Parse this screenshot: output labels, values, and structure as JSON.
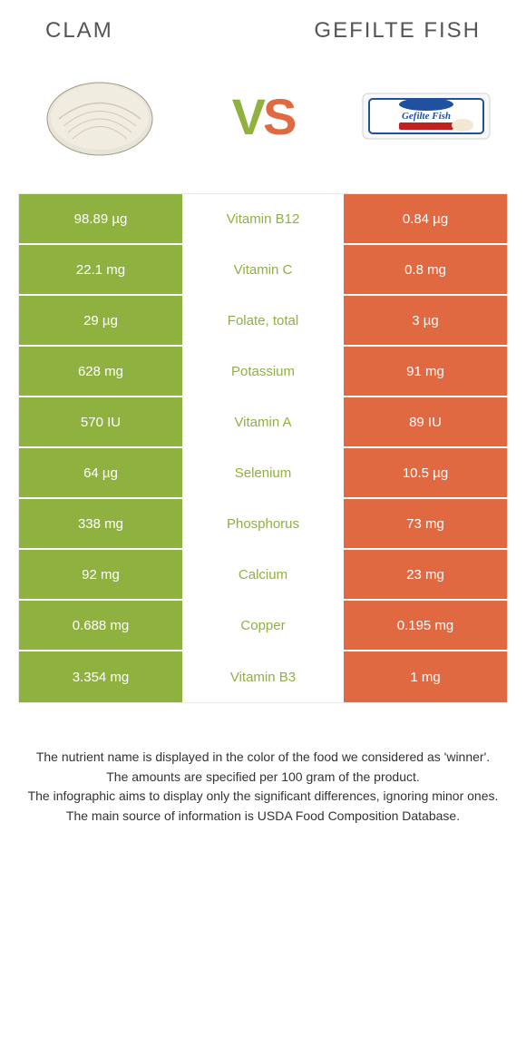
{
  "header": {
    "left": "Clam",
    "right": "Gefilte fish"
  },
  "vs": {
    "v": "V",
    "s": "S"
  },
  "colors": {
    "left_bg": "#8fb13f",
    "right_bg": "#e06941",
    "clam_winner": "#8fb13f",
    "gefilte_winner": "#e06941"
  },
  "table": {
    "rows": [
      {
        "left": "98.89 µg",
        "nutrient": "Vitamin B12",
        "right": "0.84 µg",
        "winner": "clam"
      },
      {
        "left": "22.1 mg",
        "nutrient": "Vitamin C",
        "right": "0.8 mg",
        "winner": "clam"
      },
      {
        "left": "29 µg",
        "nutrient": "Folate, total",
        "right": "3 µg",
        "winner": "clam"
      },
      {
        "left": "628 mg",
        "nutrient": "Potassium",
        "right": "91 mg",
        "winner": "clam"
      },
      {
        "left": "570 IU",
        "nutrient": "Vitamin A",
        "right": "89 IU",
        "winner": "clam"
      },
      {
        "left": "64 µg",
        "nutrient": "Selenium",
        "right": "10.5 µg",
        "winner": "clam"
      },
      {
        "left": "338 mg",
        "nutrient": "Phosphorus",
        "right": "73 mg",
        "winner": "clam"
      },
      {
        "left": "92 mg",
        "nutrient": "Calcium",
        "right": "23 mg",
        "winner": "clam"
      },
      {
        "left": "0.688 mg",
        "nutrient": "Copper",
        "right": "0.195 mg",
        "winner": "clam"
      },
      {
        "left": "3.354 mg",
        "nutrient": "Vitamin B3",
        "right": "1 mg",
        "winner": "clam"
      }
    ]
  },
  "footer": {
    "line1": "The nutrient name is displayed in the color of the food we considered as 'winner'.",
    "line2": "The amounts are specified per 100 gram of the product.",
    "line3": "The infographic aims to display only the significant differences, ignoring minor ones.",
    "line4": "The main source of information is USDA Food Composition Database."
  }
}
